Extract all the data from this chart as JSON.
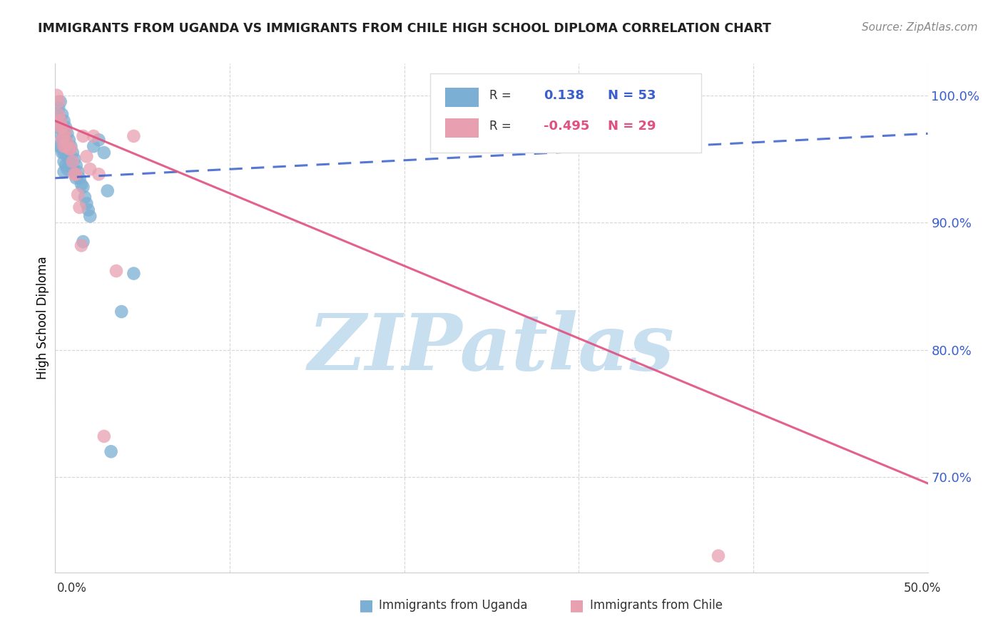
{
  "title": "IMMIGRANTS FROM UGANDA VS IMMIGRANTS FROM CHILE HIGH SCHOOL DIPLOMA CORRELATION CHART",
  "source": "Source: ZipAtlas.com",
  "ylabel": "High School Diploma",
  "ytick_labels": [
    "100.0%",
    "90.0%",
    "80.0%",
    "70.0%"
  ],
  "ytick_values": [
    1.0,
    0.9,
    0.8,
    0.7
  ],
  "xlim": [
    0.0,
    0.5
  ],
  "ylim": [
    0.625,
    1.025
  ],
  "color_uganda": "#7bafd4",
  "color_chile": "#e8a0b0",
  "color_uganda_line": "#3a5fcd",
  "color_chile_line": "#e05080",
  "watermark_text": "ZIPatlas",
  "watermark_color": "#c8dff0",
  "legend_r1": "R =",
  "legend_v1": "0.138",
  "legend_n1": "N = 53",
  "legend_r2": "R =",
  "legend_v2": "-0.495",
  "legend_n2": "N = 29",
  "uganda_line_x": [
    0.0,
    0.5
  ],
  "uganda_line_y": [
    0.935,
    0.97
  ],
  "chile_line_x": [
    0.0,
    0.5
  ],
  "chile_line_y": [
    0.98,
    0.695
  ],
  "uganda_x": [
    0.001,
    0.002,
    0.002,
    0.002,
    0.003,
    0.003,
    0.003,
    0.003,
    0.004,
    0.004,
    0.004,
    0.004,
    0.005,
    0.005,
    0.005,
    0.005,
    0.005,
    0.005,
    0.006,
    0.006,
    0.006,
    0.006,
    0.007,
    0.007,
    0.007,
    0.007,
    0.008,
    0.008,
    0.008,
    0.009,
    0.009,
    0.01,
    0.01,
    0.011,
    0.011,
    0.012,
    0.012,
    0.013,
    0.014,
    0.015,
    0.016,
    0.016,
    0.017,
    0.018,
    0.019,
    0.02,
    0.022,
    0.025,
    0.028,
    0.03,
    0.032,
    0.038,
    0.045
  ],
  "uganda_y": [
    0.985,
    0.99,
    0.975,
    0.96,
    0.995,
    0.98,
    0.97,
    0.96,
    0.985,
    0.975,
    0.965,
    0.955,
    0.98,
    0.97,
    0.962,
    0.955,
    0.948,
    0.94,
    0.975,
    0.965,
    0.955,
    0.945,
    0.97,
    0.96,
    0.952,
    0.942,
    0.965,
    0.958,
    0.948,
    0.96,
    0.95,
    0.955,
    0.942,
    0.95,
    0.94,
    0.945,
    0.935,
    0.94,
    0.935,
    0.93,
    0.928,
    0.885,
    0.92,
    0.915,
    0.91,
    0.905,
    0.96,
    0.965,
    0.955,
    0.925,
    0.72,
    0.83,
    0.86
  ],
  "chile_x": [
    0.001,
    0.002,
    0.002,
    0.003,
    0.003,
    0.004,
    0.004,
    0.005,
    0.005,
    0.006,
    0.006,
    0.007,
    0.008,
    0.009,
    0.01,
    0.011,
    0.012,
    0.013,
    0.014,
    0.015,
    0.016,
    0.018,
    0.02,
    0.022,
    0.025,
    0.028,
    0.035,
    0.045,
    0.38
  ],
  "chile_y": [
    1.0,
    0.995,
    0.985,
    0.98,
    0.975,
    0.975,
    0.965,
    0.968,
    0.96,
    0.972,
    0.96,
    0.963,
    0.958,
    0.958,
    0.948,
    0.938,
    0.938,
    0.922,
    0.912,
    0.882,
    0.968,
    0.952,
    0.942,
    0.968,
    0.938,
    0.732,
    0.862,
    0.968,
    0.638
  ]
}
